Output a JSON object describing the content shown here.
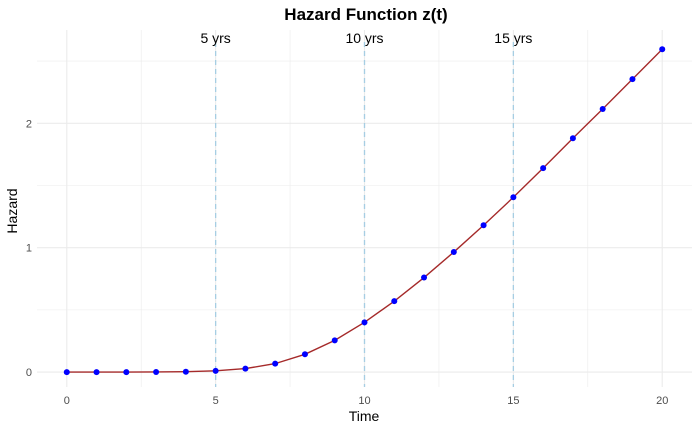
{
  "chart_data": {
    "type": "line",
    "title": "Hazard Function z(t)",
    "xlabel": "Time",
    "ylabel": "Hazard",
    "xlim": [
      -1,
      21
    ],
    "ylim": [
      -0.12,
      2.75
    ],
    "x_ticks": [
      0,
      5,
      10,
      15,
      20
    ],
    "x_tick_labels": [
      "0",
      "5",
      "10",
      "15",
      "20"
    ],
    "y_ticks": [
      0,
      1,
      2
    ],
    "y_tick_labels": [
      "0",
      "1",
      "2"
    ],
    "grid": true,
    "legend": "none",
    "series": [
      {
        "color": "#a52a2a",
        "point_color": "#0000ff",
        "x": [
          0,
          1,
          2,
          3,
          4,
          5,
          6,
          7,
          8,
          9,
          10,
          11,
          12,
          13,
          14,
          15,
          16,
          17,
          18,
          19,
          20
        ],
        "values": [
          0,
          0,
          0,
          0.001,
          0.003,
          0.01,
          0.028,
          0.068,
          0.143,
          0.255,
          0.4,
          0.57,
          0.76,
          0.965,
          1.18,
          1.405,
          1.64,
          1.88,
          2.115,
          2.355,
          2.595
        ]
      }
    ],
    "vlines": [
      {
        "x": 5,
        "label": "5 yrs",
        "color": "#a6cee3"
      },
      {
        "x": 10,
        "label": "10 yrs",
        "color": "#a6cee3"
      },
      {
        "x": 15,
        "label": "15 yrs",
        "color": "#a6cee3"
      }
    ]
  }
}
